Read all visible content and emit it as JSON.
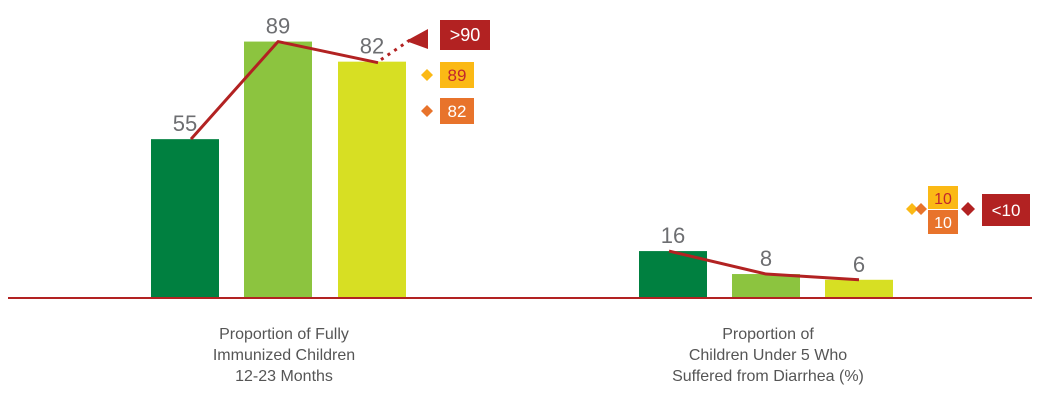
{
  "colors": {
    "bar_dark_green": "#008040",
    "bar_light_green": "#8cc43f",
    "bar_yellow_green": "#d7df23",
    "trend_line": "#b22222",
    "target_dark_red": "#b22222",
    "target_yellow": "#fbb915",
    "target_orange": "#e8732b",
    "target_text_red": "#c1272d",
    "baseline": "#b22222"
  },
  "chart_data": [
    {
      "type": "bar",
      "categories": [
        "",
        "",
        ""
      ],
      "values": [
        55,
        89,
        82
      ],
      "data_labels": [
        "55",
        "89",
        "82"
      ],
      "ylim": [
        0,
        100
      ],
      "trend_line": true,
      "label_lines": [
        "Proportion of Fully",
        "Immunized Children",
        "12-23 Months"
      ],
      "targets": [
        {
          "label": ">90",
          "value": 90,
          "color_key": "target_dark_red",
          "marker": "arrow"
        },
        {
          "label": "89",
          "value": 89,
          "color_key": "target_yellow",
          "marker": "diamond"
        },
        {
          "label": "82",
          "value": 82,
          "color_key": "target_orange",
          "marker": "diamond"
        }
      ]
    },
    {
      "type": "bar",
      "categories": [
        "",
        "",
        ""
      ],
      "values": [
        16,
        8,
        6
      ],
      "data_labels": [
        "16",
        "8",
        "6"
      ],
      "ylim": [
        0,
        100
      ],
      "trend_line": true,
      "label_lines": [
        "Proportion of",
        "Children Under 5 Who",
        "Suffered from Diarrhea (%)"
      ],
      "targets": [
        {
          "label": "10",
          "value": 10,
          "color_key": "target_yellow",
          "marker": "diamond"
        },
        {
          "label": "10",
          "value": 10,
          "color_key": "target_orange",
          "marker": "diamond"
        },
        {
          "label": "<10",
          "value": 10,
          "color_key": "target_dark_red",
          "marker": "diamond"
        }
      ]
    }
  ]
}
